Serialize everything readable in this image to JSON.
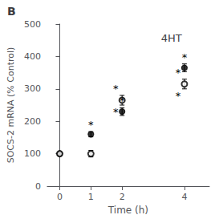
{
  "chart_data": {
    "type": "scatter",
    "title": "4HT",
    "panel_label": "B",
    "xlabel": "Time (h)",
    "ylabel": "SOCS-2 mRNA (% Control)",
    "x": [
      0,
      1,
      2,
      4
    ],
    "series": [
      {
        "values": [
          100,
          160,
          230,
          365
        ],
        "errors": [
          5,
          8,
          12,
          12
        ],
        "color": "#000000",
        "marker": "circle",
        "annotations": [
          {
            "x": 1,
            "text": "*",
            "position": "above"
          },
          {
            "x": 2,
            "text": "*",
            "position": "above"
          },
          {
            "x": 4,
            "text": "*",
            "position": "above"
          }
        ]
      },
      {
        "values": [
          100,
          100,
          265,
          315
        ],
        "errors": [
          5,
          10,
          15,
          15
        ],
        "color": "#000000",
        "marker": "open_circle",
        "annotations": [
          {
            "x": 2,
            "text": "*",
            "position": "above"
          },
          {
            "x": 4,
            "text": "*",
            "position": "above"
          },
          {
            "x": 2,
            "text": "*",
            "position": "below"
          },
          {
            "x": 4,
            "text": "*",
            "position": "below"
          }
        ]
      }
    ],
    "xlim": [
      -0.4,
      4.8
    ],
    "xticks": [
      0,
      1,
      2,
      4
    ],
    "ylim": [
      0,
      500
    ],
    "yticks": [
      0,
      100,
      200,
      300,
      400,
      500
    ],
    "grid": false
  }
}
